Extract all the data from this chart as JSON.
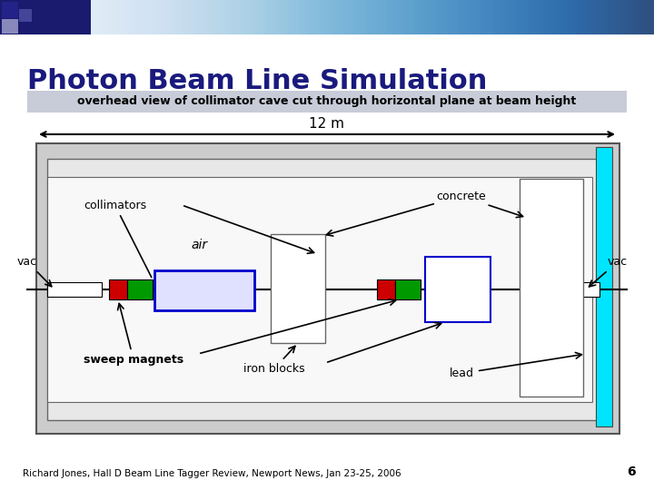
{
  "title": "Photon Beam Line Simulation",
  "subtitle": "overhead view of collimator cave cut through horizontal plane at beam height",
  "footer": "Richard Jones, Hall D Beam Line Tagger Review, Newport News, Jan 23-25, 2006",
  "slide_number": "6",
  "bg_color": "#ffffff",
  "title_color": "#1a1a7e",
  "subtitle_bg": "#c8ccd8",
  "dim_label": "12 m",
  "cyan_color": "#00e5ff",
  "red_color": "#cc0000",
  "green_color": "#009900",
  "blue_border_color": "#0000cc",
  "gray_color": "#aaaaaa",
  "dark_gray": "#666666"
}
